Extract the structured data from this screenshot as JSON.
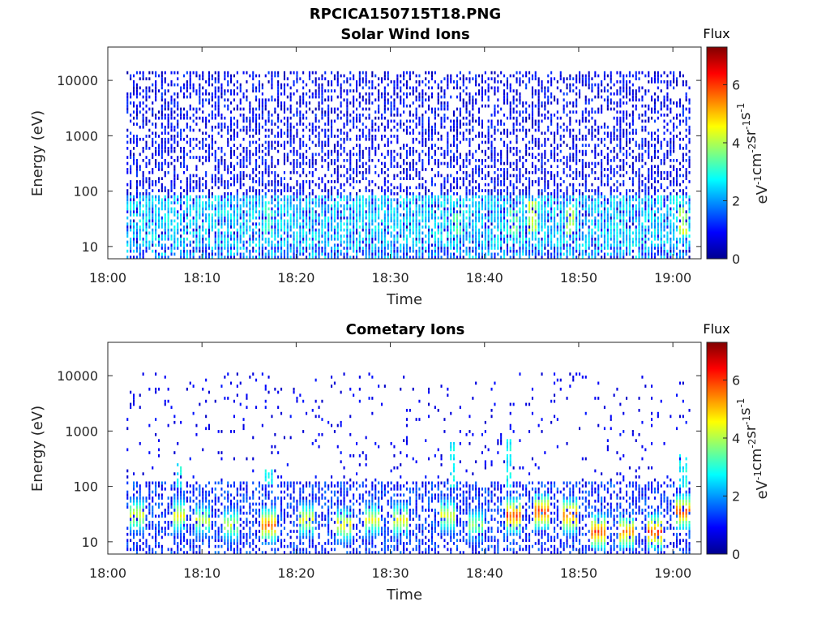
{
  "figure_title": "RPCICA150715T18.PNG",
  "colorbar": {
    "title": "Flux",
    "unit_parts": [
      "eV",
      "-1",
      "cm",
      "-2",
      "sr",
      "-1",
      "s",
      "-1"
    ],
    "ticks": [
      "0",
      "2",
      "4",
      "6"
    ],
    "range": [
      0,
      7.3
    ],
    "colormap": "jet"
  },
  "chart_data": [
    {
      "type": "heatmap",
      "title": "Solar Wind Ions",
      "xlabel": "Time",
      "ylabel": "Energy (eV)",
      "x_ticks": [
        "18:00",
        "18:10",
        "18:20",
        "18:30",
        "18:40",
        "18:50",
        "19:00"
      ],
      "x_range": [
        "18:00",
        "19:03"
      ],
      "data_start": "18:02",
      "data_end": "19:02",
      "y_scale": "log",
      "y_ticks": [
        "10",
        "100",
        "1000",
        "10000"
      ],
      "y_range": [
        6,
        40000
      ],
      "z_label": "Flux",
      "z_range": [
        0,
        7.3
      ],
      "colormap": "jet",
      "description_note": "",
      "features": {
        "background_noise_energy_range": [
          6,
          15000
        ],
        "enhanced_band_energy_range": [
          10,
          80
        ],
        "typical_flux_noise": 1.0,
        "typical_flux_band": 3.0,
        "band_peaks": [
          {
            "time": "18:45",
            "energy": 35,
            "flux": 4.5
          },
          {
            "time": "18:49",
            "energy": 30,
            "flux": 4.3
          },
          {
            "time": "19:01",
            "energy": 30,
            "flux": 4.5
          },
          {
            "time": "18:43",
            "energy": 30,
            "flux": 3.8
          },
          {
            "time": "18:37",
            "energy": 30,
            "flux": 3.6
          },
          {
            "time": "18:17",
            "energy": 30,
            "flux": 3.4
          }
        ]
      }
    },
    {
      "type": "heatmap",
      "title": "Cometary Ions",
      "xlabel": "Time",
      "ylabel": "Energy (eV)",
      "x_ticks": [
        "18:00",
        "18:10",
        "18:20",
        "18:30",
        "18:40",
        "18:50",
        "19:00"
      ],
      "x_range": [
        "18:00",
        "19:03"
      ],
      "data_start": "18:02",
      "data_end": "19:02",
      "y_scale": "log",
      "y_ticks": [
        "10",
        "100",
        "1000",
        "10000"
      ],
      "y_range": [
        6,
        40000
      ],
      "z_label": "Flux",
      "z_range": [
        0,
        7.3
      ],
      "colormap": "jet",
      "features": {
        "sparse_noise_energy_range": [
          100,
          12000
        ],
        "main_band_energy_range": [
          6,
          130
        ],
        "bursts": [
          {
            "time": "18:03",
            "energy": 30,
            "flux": 4.8
          },
          {
            "time": "18:07.5",
            "energy": 30,
            "flux": 5.0
          },
          {
            "time": "18:10",
            "energy": 25,
            "flux": 4.6
          },
          {
            "time": "18:13",
            "energy": 20,
            "flux": 4.5
          },
          {
            "time": "18:17",
            "energy": 20,
            "flux": 6.2
          },
          {
            "time": "18:21",
            "energy": 25,
            "flux": 5.0
          },
          {
            "time": "18:25",
            "energy": 20,
            "flux": 5.2
          },
          {
            "time": "18:28",
            "energy": 25,
            "flux": 4.8
          },
          {
            "time": "18:31",
            "energy": 25,
            "flux": 5.0
          },
          {
            "time": "18:36",
            "energy": 30,
            "flux": 4.9
          },
          {
            "time": "18:39",
            "energy": 20,
            "flux": 4.2
          },
          {
            "time": "18:43",
            "energy": 30,
            "flux": 6.5
          },
          {
            "time": "18:46",
            "energy": 35,
            "flux": 6.6
          },
          {
            "time": "18:49",
            "energy": 30,
            "flux": 6.3
          },
          {
            "time": "18:52",
            "energy": 15,
            "flux": 6.4
          },
          {
            "time": "18:55",
            "energy": 15,
            "flux": 5.8
          },
          {
            "time": "18:58",
            "energy": 15,
            "flux": 6.6
          },
          {
            "time": "19:01",
            "energy": 35,
            "flux": 6.4
          }
        ],
        "high_energy_tails": [
          {
            "time": "18:07.5",
            "energy_max": 250
          },
          {
            "time": "18:17",
            "energy_max": 200
          },
          {
            "time": "18:36.5",
            "energy_max": 600
          },
          {
            "time": "18:42.5",
            "energy_max": 700
          },
          {
            "time": "19:01",
            "energy_max": 400
          }
        ]
      }
    }
  ]
}
